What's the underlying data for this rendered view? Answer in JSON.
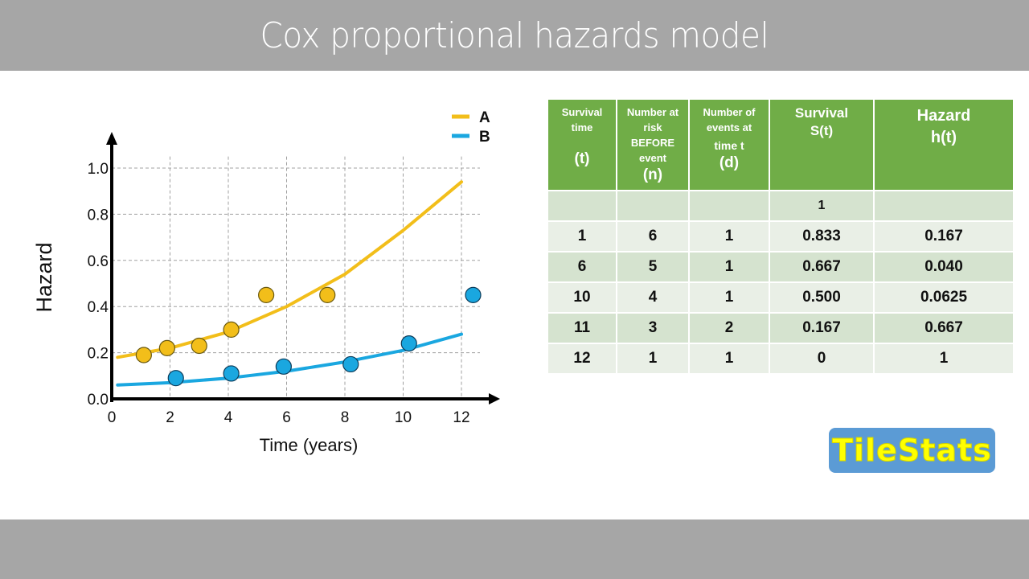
{
  "slide": {
    "title": "Cox proportional hazards model"
  },
  "chart_data": {
    "type": "scatter",
    "title": "",
    "xlabel": "Time (years)",
    "ylabel": "Hazard",
    "xlim": [
      0,
      12.8
    ],
    "ylim": [
      0,
      1.1
    ],
    "x_ticks": [
      "0",
      "2",
      "4",
      "6",
      "8",
      "10",
      "12"
    ],
    "y_ticks": [
      "0.0",
      "0.2",
      "0.4",
      "0.6",
      "0.8",
      "1.0"
    ],
    "grid": true,
    "legend_position": "top-right",
    "series": [
      {
        "name": "A",
        "color": "#f2be1a",
        "points": [
          [
            1.1,
            0.19
          ],
          [
            1.9,
            0.22
          ],
          [
            3.0,
            0.23
          ],
          [
            4.1,
            0.3
          ],
          [
            5.3,
            0.45
          ],
          [
            7.4,
            0.45
          ]
        ],
        "fit_curve": [
          [
            0.2,
            0.18
          ],
          [
            2,
            0.22
          ],
          [
            4,
            0.29
          ],
          [
            6,
            0.4
          ],
          [
            8,
            0.54
          ],
          [
            10,
            0.73
          ],
          [
            12,
            0.94
          ]
        ]
      },
      {
        "name": "B",
        "color": "#1aa7e0",
        "points": [
          [
            2.2,
            0.09
          ],
          [
            4.1,
            0.11
          ],
          [
            5.9,
            0.14
          ],
          [
            8.2,
            0.15
          ],
          [
            10.2,
            0.24
          ],
          [
            12.4,
            0.45
          ]
        ],
        "fit_curve": [
          [
            0.2,
            0.06
          ],
          [
            2,
            0.07
          ],
          [
            4,
            0.09
          ],
          [
            6,
            0.12
          ],
          [
            8,
            0.16
          ],
          [
            10,
            0.21
          ],
          [
            12,
            0.28
          ]
        ]
      }
    ]
  },
  "table": {
    "headers": [
      {
        "lines": [
          "Survival",
          "time"
        ],
        "symbol": "(t)"
      },
      {
        "lines": [
          "Number at",
          "risk",
          "BEFORE",
          "event"
        ],
        "symbol": "(n)"
      },
      {
        "lines": [
          "Number of",
          "events at",
          "time t"
        ],
        "symbol": "(d)"
      },
      {
        "lines": [
          "Survival",
          "S(t)"
        ],
        "symbol": ""
      },
      {
        "lines": [
          "Hazard",
          "h(t)"
        ],
        "symbol": ""
      }
    ],
    "rows": [
      [
        "",
        "",
        "",
        "1",
        ""
      ],
      [
        "1",
        "6",
        "1",
        "0.833",
        "0.167"
      ],
      [
        "6",
        "5",
        "1",
        "0.667",
        "0.040"
      ],
      [
        "10",
        "4",
        "1",
        "0.500",
        "0.0625"
      ],
      [
        "11",
        "3",
        "2",
        "0.167",
        "0.667"
      ],
      [
        "12",
        "1",
        "1",
        "0",
        "1"
      ]
    ]
  },
  "logo": {
    "text": "TileStats"
  }
}
